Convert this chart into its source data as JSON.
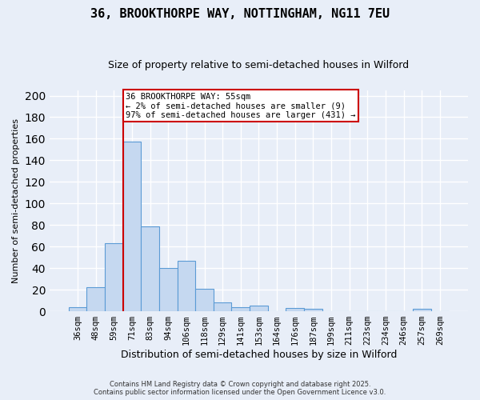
{
  "title": "36, BROOKTHORPE WAY, NOTTINGHAM, NG11 7EU",
  "subtitle": "Size of property relative to semi-detached houses in Wilford",
  "xlabel": "Distribution of semi-detached houses by size in Wilford",
  "ylabel": "Number of semi-detached properties",
  "categories": [
    "36sqm",
    "48sqm",
    "59sqm",
    "71sqm",
    "83sqm",
    "94sqm",
    "106sqm",
    "118sqm",
    "129sqm",
    "141sqm",
    "153sqm",
    "164sqm",
    "176sqm",
    "187sqm",
    "199sqm",
    "211sqm",
    "223sqm",
    "234sqm",
    "246sqm",
    "257sqm",
    "269sqm"
  ],
  "values": [
    4,
    22,
    63,
    157,
    79,
    40,
    47,
    21,
    8,
    4,
    5,
    0,
    3,
    2,
    0,
    0,
    0,
    0,
    0,
    2,
    0
  ],
  "bar_color": "#c5d8f0",
  "bar_edge_color": "#5b9bd5",
  "red_line_x": 2.5,
  "annotation_title": "36 BROOKTHORPE WAY: 55sqm",
  "annotation_line1": "← 2% of semi-detached houses are smaller (9)",
  "annotation_line2": "97% of semi-detached houses are larger (431) →",
  "annotation_box_color": "#ffffff",
  "annotation_box_edge": "#cc0000",
  "red_line_color": "#cc0000",
  "ylim": [
    0,
    205
  ],
  "footer1": "Contains HM Land Registry data © Crown copyright and database right 2025.",
  "footer2": "Contains public sector information licensed under the Open Government Licence v3.0.",
  "background_color": "#e8eef8",
  "plot_background": "#e8eef8",
  "grid_color": "#ffffff",
  "title_fontsize": 11,
  "subtitle_fontsize": 9
}
